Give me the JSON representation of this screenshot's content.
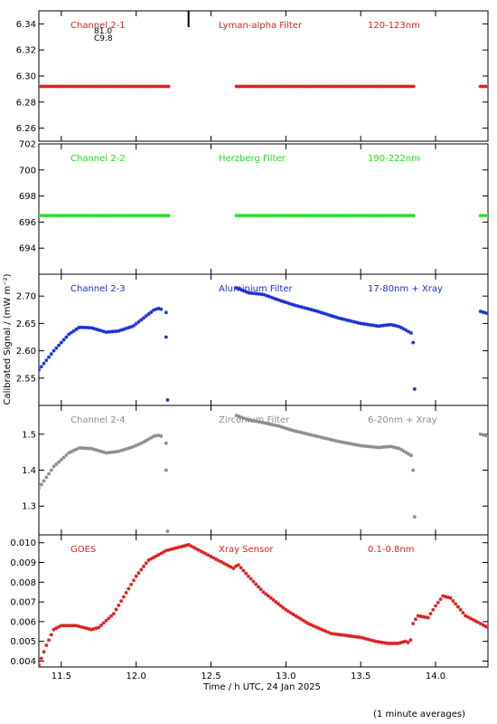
{
  "figure": {
    "ylabel": "Calibrated Signal / (mW m⁻²)",
    "xlabel": "Time / h UTC, 24 Jan 2025",
    "footnote": "(1 minute averages)",
    "xlim": [
      11.35,
      14.35
    ],
    "xticks": [
      "11.5",
      "12.0",
      "12.5",
      "13.0",
      "13.5",
      "14.0"
    ]
  },
  "chart_data": [
    {
      "type": "scatter",
      "channel": "Channel 2-1",
      "filter": "Lyman-alpha Filter",
      "band": "120-123nm",
      "color": "#dd1f1f",
      "ylim": [
        6.25,
        6.35
      ],
      "yticks": [
        "6.26",
        "6.28",
        "6.30",
        "6.32",
        "6.34"
      ],
      "annotations": [
        "81.0",
        "C9.8"
      ],
      "marker_line_x": 12.35,
      "series": [
        {
          "x": [
            11.35,
            12.22
          ],
          "y": [
            6.292,
            6.292
          ]
        },
        {
          "x": [
            12.67,
            13.86
          ],
          "y": [
            6.292,
            6.292
          ]
        },
        {
          "x": [
            14.3,
            14.35
          ],
          "y": [
            6.292,
            6.292
          ]
        }
      ]
    },
    {
      "type": "scatter",
      "channel": "Channel 2-2",
      "filter": "Herzberg Filter",
      "band": "190-222nm",
      "color": "#1fe01f",
      "ylim": [
        692,
        702
      ],
      "yticks": [
        "694",
        "696",
        "698",
        "700",
        "702"
      ],
      "series": [
        {
          "x": [
            11.35,
            12.22
          ],
          "y": [
            696.5,
            696.5
          ]
        },
        {
          "x": [
            12.67,
            13.86
          ],
          "y": [
            696.5,
            696.5
          ]
        },
        {
          "x": [
            14.3,
            14.35
          ],
          "y": [
            696.5,
            696.5
          ]
        }
      ]
    },
    {
      "type": "scatter",
      "channel": "Channel 2-3",
      "filter": "Aluminium Filter",
      "band": "17-80nm + Xray",
      "color": "#1a2ed8",
      "ylim": [
        2.5,
        2.74
      ],
      "yticks": [
        "2.55",
        "2.60",
        "2.65",
        "2.70"
      ],
      "series": [
        {
          "x": [
            11.35,
            11.45,
            11.55,
            11.62,
            11.7,
            11.8,
            11.88,
            11.98,
            12.05,
            12.12,
            12.16,
            12.18
          ],
          "y": [
            2.565,
            2.6,
            2.63,
            2.643,
            2.642,
            2.634,
            2.636,
            2.645,
            2.66,
            2.675,
            2.678,
            2.672
          ]
        },
        {
          "x": [
            12.67,
            12.75,
            12.85,
            12.95,
            13.05,
            13.2,
            13.35,
            13.5,
            13.62,
            13.7,
            13.76,
            13.8,
            13.84
          ],
          "y": [
            2.715,
            2.706,
            2.703,
            2.693,
            2.684,
            2.673,
            2.66,
            2.65,
            2.645,
            2.648,
            2.644,
            2.638,
            2.632
          ]
        },
        {
          "x": [
            14.3,
            14.35
          ],
          "y": [
            2.672,
            2.668
          ]
        }
      ],
      "outliers": {
        "x": [
          12.2,
          12.2,
          12.21,
          13.85,
          13.86
        ],
        "y": [
          2.67,
          2.625,
          2.51,
          2.615,
          2.53
        ]
      }
    },
    {
      "type": "scatter",
      "channel": "Channel 2-4",
      "filter": "Zirconium Filter",
      "band": "6-20nm + Xray",
      "color": "#8c8c8c",
      "ylim": [
        1.22,
        1.58
      ],
      "yticks": [
        "1.3",
        "1.4",
        "1.5"
      ],
      "series": [
        {
          "x": [
            11.35,
            11.45,
            11.55,
            11.62,
            11.7,
            11.8,
            11.88,
            11.98,
            12.05,
            12.12,
            12.16,
            12.18
          ],
          "y": [
            1.35,
            1.41,
            1.448,
            1.462,
            1.46,
            1.448,
            1.452,
            1.465,
            1.478,
            1.495,
            1.497,
            1.49
          ]
        },
        {
          "x": [
            12.67,
            12.75,
            12.85,
            12.95,
            13.05,
            13.2,
            13.35,
            13.5,
            13.62,
            13.7,
            13.76,
            13.8,
            13.84
          ],
          "y": [
            1.552,
            1.54,
            1.532,
            1.523,
            1.51,
            1.495,
            1.48,
            1.468,
            1.463,
            1.466,
            1.46,
            1.45,
            1.44
          ]
        },
        {
          "x": [
            14.3,
            14.35
          ],
          "y": [
            1.5,
            1.495
          ]
        }
      ],
      "outliers": {
        "x": [
          12.2,
          12.2,
          12.21,
          13.85,
          13.86
        ],
        "y": [
          1.475,
          1.4,
          1.23,
          1.4,
          1.27
        ]
      }
    },
    {
      "type": "scatter",
      "channel": "GOES",
      "filter": "Xray Sensor",
      "band": "0.1-0.8nm",
      "color": "#dd1f1f",
      "ylim": [
        0.0037,
        0.0104
      ],
      "yticks": [
        "0.004",
        "0.005",
        "0.006",
        "0.007",
        "0.008",
        "0.009",
        "0.010"
      ],
      "series": [
        {
          "x": [
            11.35,
            11.4,
            11.45,
            11.5,
            11.6,
            11.7,
            11.75,
            11.85,
            11.92,
            12.0,
            12.08,
            12.2,
            12.35,
            12.45,
            12.55,
            12.65,
            12.68,
            12.75,
            12.85,
            13.0,
            13.15,
            13.3,
            13.4,
            13.5,
            13.6,
            13.68,
            13.75,
            13.8,
            13.83,
            13.85,
            13.88,
            13.95,
            14.0,
            14.05,
            14.1,
            14.2,
            14.35
          ],
          "y": [
            0.0038,
            0.0048,
            0.0056,
            0.0058,
            0.0058,
            0.0056,
            0.0057,
            0.0064,
            0.0073,
            0.0083,
            0.0091,
            0.0096,
            0.0099,
            0.0095,
            0.0091,
            0.0087,
            0.0089,
            0.0083,
            0.0075,
            0.0066,
            0.0059,
            0.0054,
            0.0053,
            0.0052,
            0.005,
            0.0049,
            0.0049,
            0.005,
            0.0049,
            0.0059,
            0.0063,
            0.0062,
            0.0068,
            0.0073,
            0.0072,
            0.0063,
            0.0057
          ]
        }
      ]
    }
  ]
}
